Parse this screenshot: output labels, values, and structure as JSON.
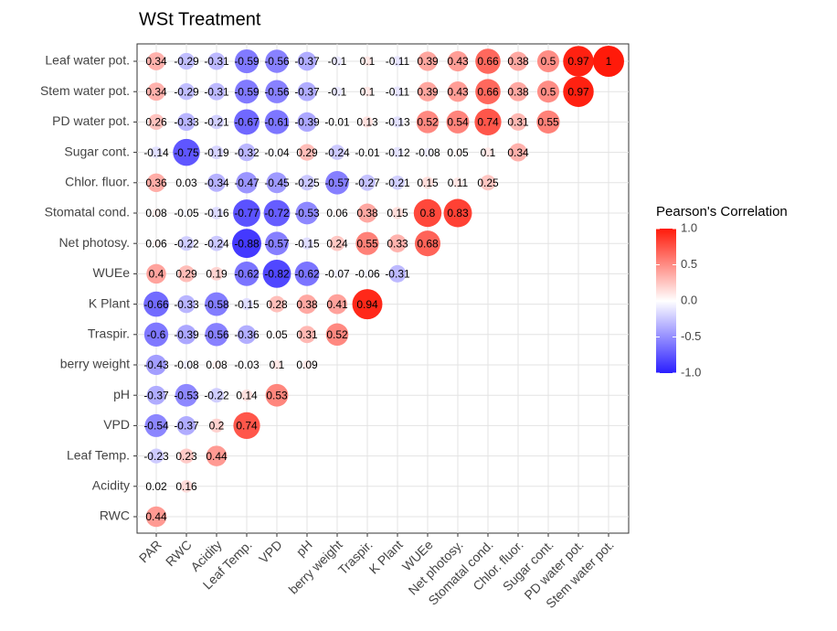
{
  "chart_data": {
    "type": "correlation",
    "title": "WSt Treatment",
    "legend_title": "Pearson's Correlation",
    "x_categories": [
      "PAR",
      "RWC",
      "Acidity",
      "Leaf Temp.",
      "VPD",
      "pH",
      "berry weight",
      "Traspir.",
      "K Plant",
      "WUEe",
      "Net photosy.",
      "Stomatal cond.",
      "Chlor. fluor.",
      "Sugar cont.",
      "PD water pot.",
      "Stem water pot."
    ],
    "y_categories": [
      "Leaf water pot.",
      "Stem water pot.",
      "PD water pot.",
      "Sugar cont.",
      "Chlor. fluor.",
      "Stomatal cond.",
      "Net photosy.",
      "WUEe",
      "K Plant",
      "Traspir.",
      "berry weight",
      "pH",
      "VPD",
      "Leaf Temp.",
      "Acidity",
      "RWC"
    ],
    "values": [
      [
        0.34,
        -0.29,
        -0.31,
        -0.59,
        -0.56,
        -0.37,
        -0.1,
        0.1,
        -0.11,
        0.39,
        0.43,
        0.66,
        0.38,
        0.5,
        0.97,
        1
      ],
      [
        0.34,
        -0.29,
        -0.31,
        -0.59,
        -0.56,
        -0.37,
        -0.1,
        0.1,
        -0.11,
        0.39,
        0.43,
        0.66,
        0.38,
        0.5,
        0.97
      ],
      [
        0.26,
        -0.33,
        -0.21,
        -0.67,
        -0.61,
        -0.39,
        -0.01,
        0.13,
        -0.13,
        0.52,
        0.54,
        0.74,
        0.31,
        0.55
      ],
      [
        -0.14,
        -0.75,
        -0.19,
        -0.32,
        -0.04,
        0.29,
        -0.24,
        -0.01,
        -0.12,
        -0.08,
        0.05,
        0.1,
        0.34
      ],
      [
        0.36,
        0.03,
        -0.34,
        -0.47,
        -0.45,
        -0.25,
        -0.57,
        -0.27,
        -0.21,
        0.15,
        0.11,
        0.25
      ],
      [
        0.08,
        -0.05,
        -0.16,
        -0.77,
        -0.72,
        -0.53,
        0.06,
        0.38,
        0.15,
        0.8,
        0.83
      ],
      [
        0.06,
        -0.22,
        -0.24,
        -0.88,
        -0.57,
        -0.15,
        0.24,
        0.55,
        0.33,
        0.68
      ],
      [
        0.4,
        0.29,
        0.19,
        -0.62,
        -0.82,
        -0.62,
        -0.07,
        -0.06,
        -0.31
      ],
      [
        -0.66,
        -0.33,
        -0.58,
        -0.15,
        0.28,
        0.38,
        0.41,
        0.94
      ],
      [
        -0.6,
        -0.39,
        -0.56,
        -0.36,
        0.05,
        0.31,
        0.52
      ],
      [
        -0.43,
        -0.08,
        0.08,
        -0.03,
        0.1,
        0.09
      ],
      [
        -0.37,
        -0.53,
        -0.22,
        0.14,
        0.53
      ],
      [
        -0.54,
        -0.37,
        0.2,
        0.74
      ],
      [
        -0.23,
        0.23,
        0.44
      ],
      [
        0.02,
        0.16
      ],
      [
        0.44
      ]
    ],
    "colors": {
      "low": "#2a1eff",
      "mid": "#ffffff",
      "high": "#ff1a0a"
    },
    "clim": [
      -1,
      1
    ],
    "cticks": [
      {
        "value": 1,
        "label": "1.0"
      },
      0.5,
      {
        "value": 0,
        "label": "0.0"
      },
      -0.5,
      {
        "value": -1,
        "label": "-1.0"
      }
    ]
  }
}
